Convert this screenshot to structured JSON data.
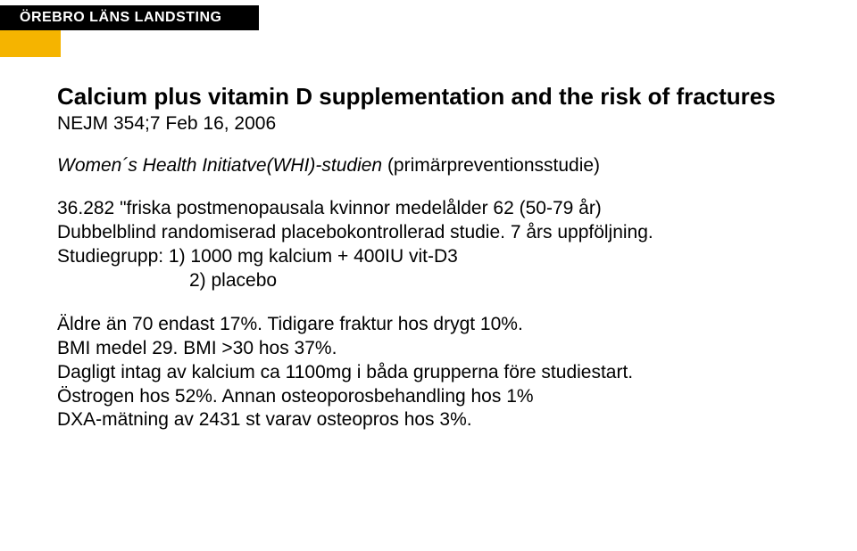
{
  "header": {
    "org": "ÖREBRO LÄNS LANDSTING"
  },
  "colors": {
    "accent": "#f5b400",
    "header_bg": "#000000",
    "header_text": "#ffffff",
    "body_text": "#000000",
    "background": "#ffffff"
  },
  "title": {
    "line1": "Calcium plus vitamin D supplementation and the risk of fractures",
    "line2": "NEJM 354;7 Feb 16, 2006"
  },
  "intro": {
    "italic": "Women´s Health Initiatve(WHI)-studien",
    "rest": " (primärpreventionsstudie)"
  },
  "design": {
    "line1": "36.282 \"friska postmenopausala kvinnor medelålder 62 (50-79 år)",
    "line2": "Dubbelblind randomiserad placebokontrollerad studie. 7 års uppföljning.",
    "line3": "Studiegrupp: 1) 1000 mg kalcium + 400IU vit-D3",
    "line4": "2) placebo"
  },
  "details": {
    "l1": "Äldre än 70 endast 17%. Tidigare fraktur hos drygt 10%.",
    "l2": "BMI medel 29. BMI >30 hos 37%.",
    "l3": "Dagligt intag av kalcium ca 1100mg i båda grupperna före studiestart.",
    "l4": "Östrogen hos 52%. Annan osteoporosbehandling hos 1%",
    "l5": "DXA-mätning av 2431 st varav osteopros hos 3%."
  }
}
